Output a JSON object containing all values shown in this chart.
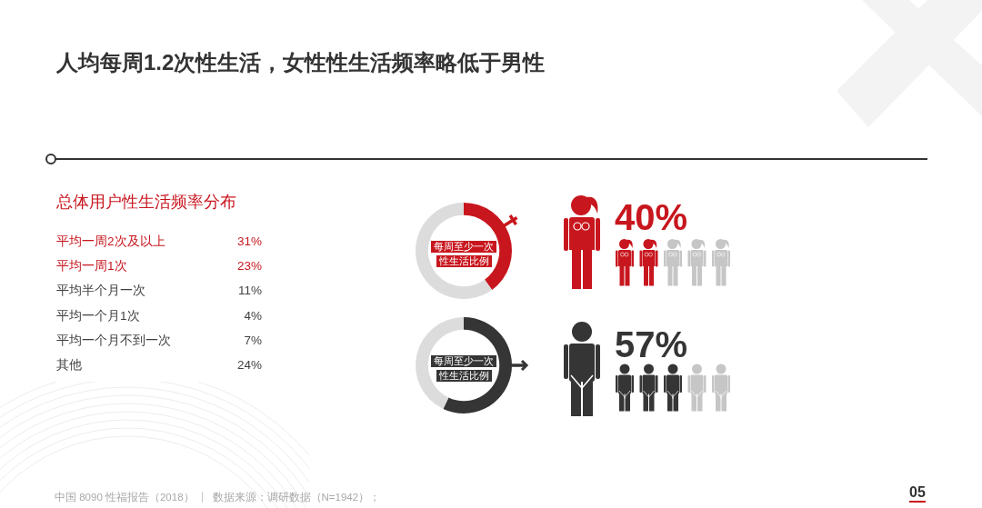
{
  "chart_data": [
    {
      "type": "other",
      "title": "人均每周1.2次性生活，女性性生活频率略低于男性",
      "subtitle": "总体用户性生活频率分布",
      "categories": [
        "平均一周2次及以上",
        "平均一周1次",
        "平均半个月一次",
        "平均一个月1次",
        "平均一个月不到一次",
        "其他"
      ],
      "values": [
        31,
        23,
        11,
        4,
        7,
        24
      ],
      "value_labels": [
        "31%",
        "23%",
        "11%",
        "4%",
        "7%",
        "24%"
      ],
      "colors": [
        "#c8161e",
        "#c8161e",
        "#404040",
        "#404040",
        "#404040",
        "#404040"
      ],
      "annotations": [
        "中国 8090 性福报告（2018）",
        "数据来源：调研数据（N=1942）；",
        "05"
      ]
    },
    {
      "type": "donut",
      "categories": [
        null,
        null
      ],
      "values": [
        40,
        60
      ],
      "colors": [
        "#c8161e",
        "#dcdcdc"
      ],
      "value_labels": [
        "40%",
        null
      ],
      "annotations": [
        "每周至少一次",
        "性生活比例"
      ]
    },
    {
      "type": "donut",
      "categories": [
        null,
        null
      ],
      "values": [
        57,
        43
      ],
      "colors": [
        "#353535",
        "#dcdcdc"
      ],
      "value_labels": [
        "57%",
        null
      ],
      "annotations": [
        "每周至少一次",
        "性生活比例"
      ]
    }
  ]
}
